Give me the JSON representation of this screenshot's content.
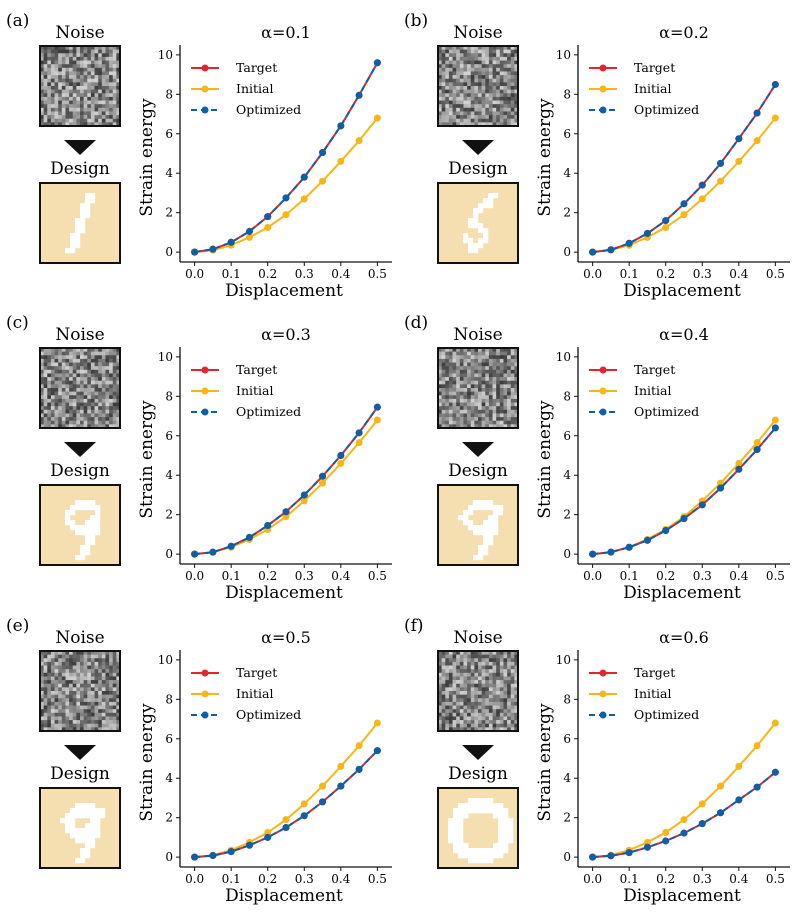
{
  "colors": {
    "target": "#e3262d",
    "initial": "#f7b617",
    "optimized": "#0f5fa6",
    "design_bg": "#f5deb0",
    "frame": "#111111"
  },
  "common": {
    "noise_label": "Noise",
    "design_label": "Design",
    "arrow_icon": "down-triangle-icon"
  },
  "chart_data": [
    {
      "type": "line",
      "panel_label": "(a)",
      "title": "α=0.1",
      "digit_shape": "1",
      "xlabel": "Displacement",
      "ylabel": "Strain energy",
      "xlim": [
        -0.04,
        0.54
      ],
      "ylim": [
        -0.5,
        10.5
      ],
      "xticks": [
        "0.0",
        "0.1",
        "0.2",
        "0.3",
        "0.4",
        "0.5"
      ],
      "yticks": [
        "0",
        "2",
        "4",
        "6",
        "8",
        "10"
      ],
      "x": [
        0.0,
        0.05,
        0.1,
        0.15,
        0.2,
        0.25,
        0.3,
        0.35,
        0.4,
        0.45,
        0.5
      ],
      "series": [
        {
          "name": "Target",
          "style": "solid",
          "values": [
            0,
            0.15,
            0.5,
            1.05,
            1.8,
            2.75,
            3.8,
            5.05,
            6.4,
            7.95,
            9.6
          ]
        },
        {
          "name": "Initial",
          "style": "solid",
          "values": [
            0,
            0.1,
            0.35,
            0.75,
            1.25,
            1.9,
            2.7,
            3.6,
            4.6,
            5.65,
            6.8
          ]
        },
        {
          "name": "Optimized",
          "style": "dashed",
          "values": [
            0,
            0.15,
            0.5,
            1.05,
            1.8,
            2.75,
            3.8,
            5.05,
            6.4,
            7.95,
            9.6
          ]
        }
      ]
    },
    {
      "type": "line",
      "panel_label": "(b)",
      "title": "α=0.2",
      "digit_shape": "5",
      "xlabel": "Displacement",
      "ylabel": "Strain energy",
      "xlim": [
        -0.04,
        0.54
      ],
      "ylim": [
        -0.5,
        10.5
      ],
      "xticks": [
        "0.0",
        "0.1",
        "0.2",
        "0.3",
        "0.4",
        "0.5"
      ],
      "yticks": [
        "0",
        "2",
        "4",
        "6",
        "8",
        "10"
      ],
      "x": [
        0.0,
        0.05,
        0.1,
        0.15,
        0.2,
        0.25,
        0.3,
        0.35,
        0.4,
        0.45,
        0.5
      ],
      "series": [
        {
          "name": "Target",
          "style": "solid",
          "values": [
            0,
            0.12,
            0.45,
            0.95,
            1.6,
            2.45,
            3.4,
            4.5,
            5.75,
            7.05,
            8.5
          ]
        },
        {
          "name": "Initial",
          "style": "solid",
          "values": [
            0,
            0.1,
            0.35,
            0.75,
            1.25,
            1.9,
            2.7,
            3.6,
            4.6,
            5.65,
            6.8
          ]
        },
        {
          "name": "Optimized",
          "style": "dashed",
          "values": [
            0,
            0.12,
            0.45,
            0.95,
            1.6,
            2.45,
            3.4,
            4.5,
            5.75,
            7.05,
            8.5
          ]
        }
      ]
    },
    {
      "type": "line",
      "panel_label": "(c)",
      "title": "α=0.3",
      "digit_shape": "9a",
      "xlabel": "Displacement",
      "ylabel": "Strain energy",
      "xlim": [
        -0.04,
        0.54
      ],
      "ylim": [
        -0.5,
        10.5
      ],
      "xticks": [
        "0.0",
        "0.1",
        "0.2",
        "0.3",
        "0.4",
        "0.5"
      ],
      "yticks": [
        "0",
        "2",
        "4",
        "6",
        "8",
        "10"
      ],
      "x": [
        0.0,
        0.05,
        0.1,
        0.15,
        0.2,
        0.25,
        0.3,
        0.35,
        0.4,
        0.45,
        0.5
      ],
      "series": [
        {
          "name": "Target",
          "style": "solid",
          "values": [
            0,
            0.1,
            0.4,
            0.85,
            1.45,
            2.15,
            3.0,
            3.95,
            5.0,
            6.15,
            7.45
          ]
        },
        {
          "name": "Initial",
          "style": "solid",
          "values": [
            0,
            0.1,
            0.35,
            0.75,
            1.25,
            1.9,
            2.7,
            3.6,
            4.6,
            5.65,
            6.8
          ]
        },
        {
          "name": "Optimized",
          "style": "dashed",
          "values": [
            0,
            0.1,
            0.4,
            0.85,
            1.45,
            2.15,
            3.0,
            3.95,
            5.0,
            6.15,
            7.45
          ]
        }
      ]
    },
    {
      "type": "line",
      "panel_label": "(d)",
      "title": "α=0.4",
      "digit_shape": "9b",
      "xlabel": "Displacement",
      "ylabel": "Strain energy",
      "xlim": [
        -0.04,
        0.54
      ],
      "ylim": [
        -0.5,
        10.5
      ],
      "xticks": [
        "0.0",
        "0.1",
        "0.2",
        "0.3",
        "0.4",
        "0.5"
      ],
      "yticks": [
        "0",
        "2",
        "4",
        "6",
        "8",
        "10"
      ],
      "x": [
        0.0,
        0.05,
        0.1,
        0.15,
        0.2,
        0.25,
        0.3,
        0.35,
        0.4,
        0.45,
        0.5
      ],
      "series": [
        {
          "name": "Target",
          "style": "solid",
          "values": [
            0,
            0.1,
            0.35,
            0.7,
            1.2,
            1.8,
            2.5,
            3.35,
            4.3,
            5.3,
            6.4
          ]
        },
        {
          "name": "Initial",
          "style": "solid",
          "values": [
            0,
            0.1,
            0.35,
            0.75,
            1.25,
            1.9,
            2.7,
            3.6,
            4.6,
            5.65,
            6.8
          ]
        },
        {
          "name": "Optimized",
          "style": "dashed",
          "values": [
            0,
            0.1,
            0.35,
            0.7,
            1.2,
            1.8,
            2.5,
            3.35,
            4.3,
            5.3,
            6.4
          ]
        }
      ]
    },
    {
      "type": "line",
      "panel_label": "(e)",
      "title": "α=0.5",
      "digit_shape": "9c",
      "xlabel": "Displacement",
      "ylabel": "Strain energy",
      "xlim": [
        -0.04,
        0.54
      ],
      "ylim": [
        -0.5,
        10.5
      ],
      "xticks": [
        "0.0",
        "0.1",
        "0.2",
        "0.3",
        "0.4",
        "0.5"
      ],
      "yticks": [
        "0",
        "2",
        "4",
        "6",
        "8",
        "10"
      ],
      "x": [
        0.0,
        0.05,
        0.1,
        0.15,
        0.2,
        0.25,
        0.3,
        0.35,
        0.4,
        0.45,
        0.5
      ],
      "series": [
        {
          "name": "Target",
          "style": "solid",
          "values": [
            0,
            0.08,
            0.28,
            0.6,
            1.0,
            1.5,
            2.1,
            2.8,
            3.6,
            4.45,
            5.4
          ]
        },
        {
          "name": "Initial",
          "style": "solid",
          "values": [
            0,
            0.1,
            0.35,
            0.75,
            1.25,
            1.9,
            2.7,
            3.6,
            4.6,
            5.65,
            6.8
          ]
        },
        {
          "name": "Optimized",
          "style": "dashed",
          "values": [
            0,
            0.08,
            0.28,
            0.6,
            1.0,
            1.5,
            2.1,
            2.8,
            3.6,
            4.45,
            5.4
          ]
        }
      ]
    },
    {
      "type": "line",
      "panel_label": "(f)",
      "title": "α=0.6",
      "digit_shape": "0",
      "xlabel": "Displacement",
      "ylabel": "Strain energy",
      "xlim": [
        -0.04,
        0.54
      ],
      "ylim": [
        -0.5,
        10.5
      ],
      "xticks": [
        "0.0",
        "0.1",
        "0.2",
        "0.3",
        "0.4",
        "0.5"
      ],
      "yticks": [
        "0",
        "2",
        "4",
        "6",
        "8",
        "10"
      ],
      "x": [
        0.0,
        0.05,
        0.1,
        0.15,
        0.2,
        0.25,
        0.3,
        0.35,
        0.4,
        0.45,
        0.5
      ],
      "series": [
        {
          "name": "Target",
          "style": "solid",
          "values": [
            0,
            0.07,
            0.23,
            0.5,
            0.82,
            1.22,
            1.7,
            2.25,
            2.9,
            3.55,
            4.3
          ]
        },
        {
          "name": "Initial",
          "style": "solid",
          "values": [
            0,
            0.1,
            0.35,
            0.75,
            1.25,
            1.9,
            2.7,
            3.6,
            4.6,
            5.65,
            6.8
          ]
        },
        {
          "name": "Optimized",
          "style": "dashed",
          "values": [
            0,
            0.07,
            0.23,
            0.5,
            0.82,
            1.22,
            1.7,
            2.25,
            2.9,
            3.55,
            4.3
          ]
        }
      ]
    }
  ]
}
